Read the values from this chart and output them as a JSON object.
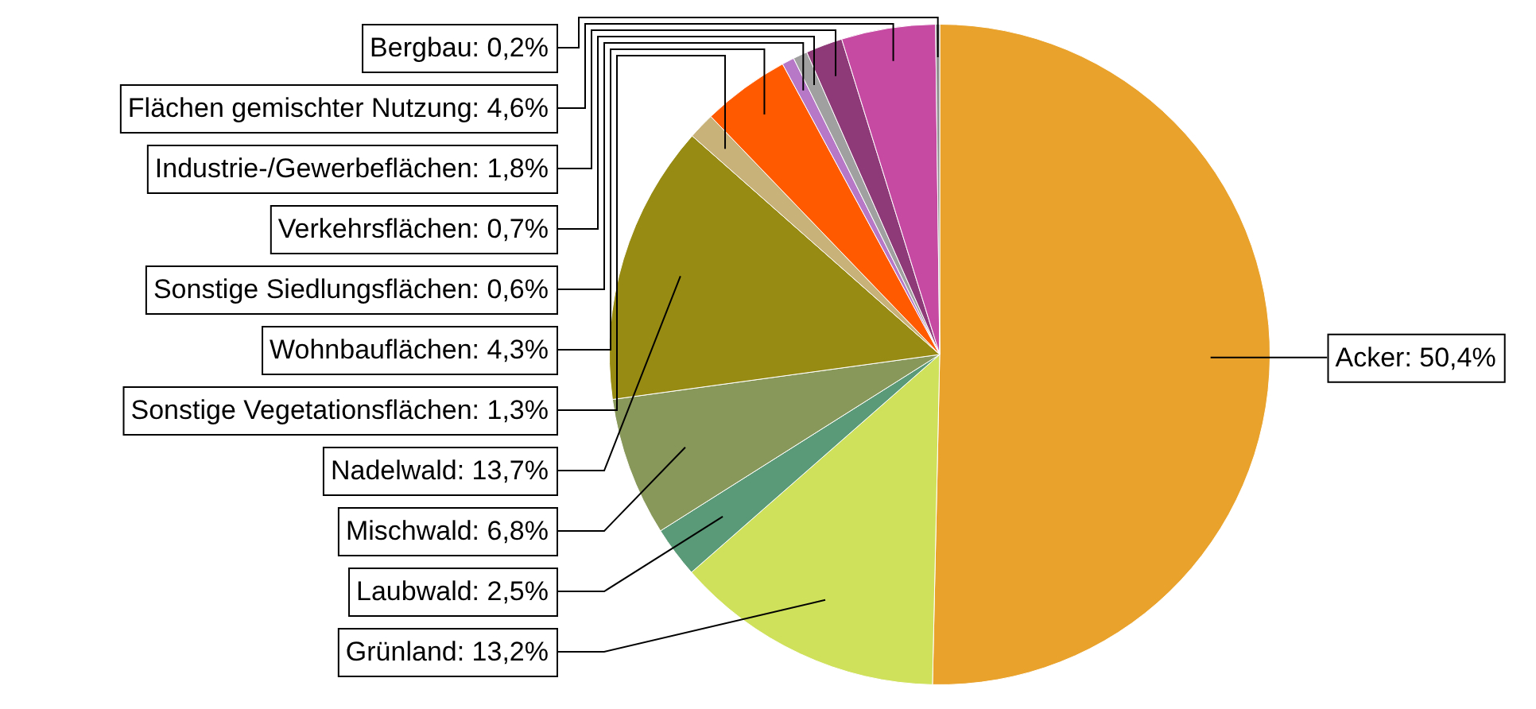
{
  "chart_data": {
    "type": "pie",
    "categories": [
      "Acker",
      "Grünland",
      "Laubwald",
      "Mischwald",
      "Nadelwald",
      "Sonstige Vegetationsflächen",
      "Wohnbauflächen",
      "Sonstige Siedlungsflächen",
      "Verkehrsflächen",
      "Industrie-/Gewerbeflächen",
      "Flächen gemischter Nutzung",
      "Bergbau"
    ],
    "values": [
      50.4,
      13.2,
      2.5,
      6.8,
      13.7,
      1.3,
      4.3,
      0.6,
      0.7,
      1.8,
      4.6,
      0.2
    ],
    "colors": [
      "#e9a22b",
      "#cfe05a",
      "#5a9a78",
      "#88975a",
      "#978b14",
      "#c8b27a",
      "#ff5a00",
      "#b878c8",
      "#a0a0a0",
      "#8e3a78",
      "#c64aa2",
      "#909090"
    ],
    "value_labels": [
      ": 50,4%",
      ": 13,2%",
      ": 2,5%",
      ": 6,8%",
      ": 13,7%",
      ": 1,3%",
      ": 4,3%",
      ": 0,6%",
      ": 0,7%",
      ": 1,8%",
      ": 4,6%",
      ": 0,2%"
    ],
    "legend": false
  }
}
